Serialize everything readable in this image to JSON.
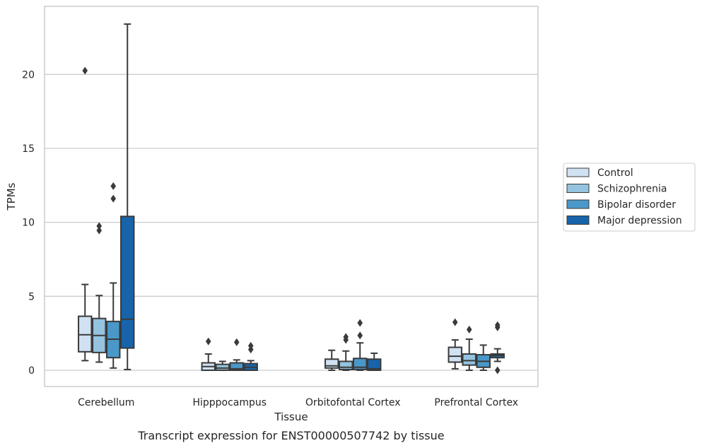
{
  "chart_data": {
    "type": "box",
    "title": "",
    "caption": "Transcript expression for ENST00000507742 by tissue",
    "xlabel": "Tissue",
    "ylabel": "TPMs",
    "ylim": [
      -1.1,
      24.6
    ],
    "yticks": [
      0,
      5,
      10,
      15,
      20
    ],
    "grid": "horizontal",
    "legend_position": "right",
    "categories": [
      "Cerebellum",
      "Hipppocampus",
      "Orbitofontal Cortex",
      "Prefrontal Cortex"
    ],
    "series": [
      {
        "name": "Control",
        "color": "#d0e1f2",
        "boxes": [
          {
            "whislo": 0.65,
            "q1": 1.25,
            "med": 2.4,
            "q3": 3.65,
            "whishi": 5.8,
            "fliers": [
              20.25
            ]
          },
          {
            "whislo": 0.0,
            "q1": 0.0,
            "med": 0.25,
            "q3": 0.5,
            "whishi": 1.1,
            "fliers": [
              1.95
            ]
          },
          {
            "whislo": 0.0,
            "q1": 0.15,
            "med": 0.3,
            "q3": 0.75,
            "whishi": 1.35,
            "fliers": []
          },
          {
            "whislo": 0.1,
            "q1": 0.55,
            "med": 0.95,
            "q3": 1.55,
            "whishi": 2.05,
            "fliers": [
              3.25
            ]
          }
        ]
      },
      {
        "name": "Schizophrenia",
        "color": "#94c4df",
        "boxes": [
          {
            "whislo": 0.55,
            "q1": 1.2,
            "med": 2.35,
            "q3": 3.5,
            "whishi": 5.05,
            "fliers": [
              9.45,
              9.75
            ]
          },
          {
            "whislo": 0.0,
            "q1": 0.0,
            "med": 0.15,
            "q3": 0.4,
            "whishi": 0.6,
            "fliers": []
          },
          {
            "whislo": 0.0,
            "q1": 0.05,
            "med": 0.2,
            "q3": 0.6,
            "whishi": 1.3,
            "fliers": [
              2.05,
              2.25
            ]
          },
          {
            "whislo": 0.0,
            "q1": 0.35,
            "med": 0.65,
            "q3": 1.1,
            "whishi": 2.1,
            "fliers": [
              2.75
            ]
          }
        ]
      },
      {
        "name": "Bipolar disorder",
        "color": "#4a98c9",
        "boxes": [
          {
            "whislo": 0.15,
            "q1": 0.85,
            "med": 2.1,
            "q3": 3.3,
            "whishi": 5.9,
            "fliers": [
              11.6,
              12.45
            ]
          },
          {
            "whislo": 0.0,
            "q1": 0.0,
            "med": 0.1,
            "q3": 0.5,
            "whishi": 0.7,
            "fliers": [
              1.9
            ]
          },
          {
            "whislo": 0.0,
            "q1": 0.05,
            "med": 0.2,
            "q3": 0.8,
            "whishi": 1.85,
            "fliers": [
              2.35,
              3.2
            ]
          },
          {
            "whislo": 0.0,
            "q1": 0.2,
            "med": 0.6,
            "q3": 1.05,
            "whishi": 1.7,
            "fliers": []
          }
        ]
      },
      {
        "name": "Major depression",
        "color": "#1764ab",
        "boxes": [
          {
            "whislo": 0.05,
            "q1": 1.5,
            "med": 3.45,
            "q3": 10.4,
            "whishi": 23.4,
            "fliers": []
          },
          {
            "whislo": 0.0,
            "q1": 0.0,
            "med": 0.2,
            "q3": 0.45,
            "whishi": 0.65,
            "fliers": [
              1.4,
              1.65
            ]
          },
          {
            "whislo": 0.0,
            "q1": 0.0,
            "med": 0.1,
            "q3": 0.75,
            "whishi": 1.15,
            "fliers": []
          },
          {
            "whislo": 0.6,
            "q1": 0.85,
            "med": 1.0,
            "q3": 1.1,
            "whishi": 1.45,
            "fliers": [
              0.0,
              2.9,
              3.05
            ]
          }
        ]
      }
    ]
  }
}
